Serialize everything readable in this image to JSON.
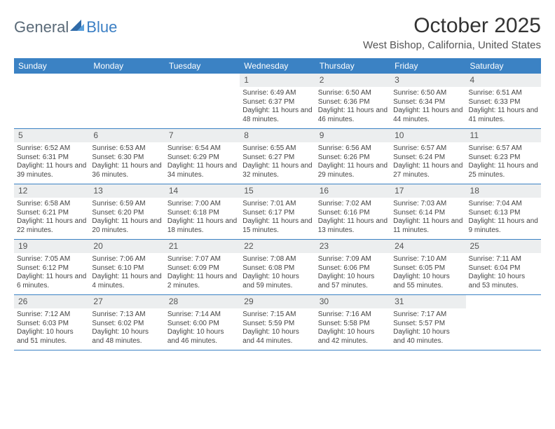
{
  "logo": {
    "text1": "General",
    "text2": "Blue"
  },
  "title": "October 2025",
  "location": "West Bishop, California, United States",
  "colors": {
    "header_bg": "#3b82c4",
    "header_text": "#ffffff",
    "daynum_bg": "#eceeef",
    "week_border": "#3b82c4",
    "body_text": "#444444",
    "logo_gray": "#5a6a78",
    "logo_blue": "#3b7fc4"
  },
  "day_names": [
    "Sunday",
    "Monday",
    "Tuesday",
    "Wednesday",
    "Thursday",
    "Friday",
    "Saturday"
  ],
  "weeks": [
    [
      {
        "n": "",
        "sunrise": "",
        "sunset": "",
        "daylight": ""
      },
      {
        "n": "",
        "sunrise": "",
        "sunset": "",
        "daylight": ""
      },
      {
        "n": "",
        "sunrise": "",
        "sunset": "",
        "daylight": ""
      },
      {
        "n": "1",
        "sunrise": "Sunrise: 6:49 AM",
        "sunset": "Sunset: 6:37 PM",
        "daylight": "Daylight: 11 hours and 48 minutes."
      },
      {
        "n": "2",
        "sunrise": "Sunrise: 6:50 AM",
        "sunset": "Sunset: 6:36 PM",
        "daylight": "Daylight: 11 hours and 46 minutes."
      },
      {
        "n": "3",
        "sunrise": "Sunrise: 6:50 AM",
        "sunset": "Sunset: 6:34 PM",
        "daylight": "Daylight: 11 hours and 44 minutes."
      },
      {
        "n": "4",
        "sunrise": "Sunrise: 6:51 AM",
        "sunset": "Sunset: 6:33 PM",
        "daylight": "Daylight: 11 hours and 41 minutes."
      }
    ],
    [
      {
        "n": "5",
        "sunrise": "Sunrise: 6:52 AM",
        "sunset": "Sunset: 6:31 PM",
        "daylight": "Daylight: 11 hours and 39 minutes."
      },
      {
        "n": "6",
        "sunrise": "Sunrise: 6:53 AM",
        "sunset": "Sunset: 6:30 PM",
        "daylight": "Daylight: 11 hours and 36 minutes."
      },
      {
        "n": "7",
        "sunrise": "Sunrise: 6:54 AM",
        "sunset": "Sunset: 6:29 PM",
        "daylight": "Daylight: 11 hours and 34 minutes."
      },
      {
        "n": "8",
        "sunrise": "Sunrise: 6:55 AM",
        "sunset": "Sunset: 6:27 PM",
        "daylight": "Daylight: 11 hours and 32 minutes."
      },
      {
        "n": "9",
        "sunrise": "Sunrise: 6:56 AM",
        "sunset": "Sunset: 6:26 PM",
        "daylight": "Daylight: 11 hours and 29 minutes."
      },
      {
        "n": "10",
        "sunrise": "Sunrise: 6:57 AM",
        "sunset": "Sunset: 6:24 PM",
        "daylight": "Daylight: 11 hours and 27 minutes."
      },
      {
        "n": "11",
        "sunrise": "Sunrise: 6:57 AM",
        "sunset": "Sunset: 6:23 PM",
        "daylight": "Daylight: 11 hours and 25 minutes."
      }
    ],
    [
      {
        "n": "12",
        "sunrise": "Sunrise: 6:58 AM",
        "sunset": "Sunset: 6:21 PM",
        "daylight": "Daylight: 11 hours and 22 minutes."
      },
      {
        "n": "13",
        "sunrise": "Sunrise: 6:59 AM",
        "sunset": "Sunset: 6:20 PM",
        "daylight": "Daylight: 11 hours and 20 minutes."
      },
      {
        "n": "14",
        "sunrise": "Sunrise: 7:00 AM",
        "sunset": "Sunset: 6:18 PM",
        "daylight": "Daylight: 11 hours and 18 minutes."
      },
      {
        "n": "15",
        "sunrise": "Sunrise: 7:01 AM",
        "sunset": "Sunset: 6:17 PM",
        "daylight": "Daylight: 11 hours and 15 minutes."
      },
      {
        "n": "16",
        "sunrise": "Sunrise: 7:02 AM",
        "sunset": "Sunset: 6:16 PM",
        "daylight": "Daylight: 11 hours and 13 minutes."
      },
      {
        "n": "17",
        "sunrise": "Sunrise: 7:03 AM",
        "sunset": "Sunset: 6:14 PM",
        "daylight": "Daylight: 11 hours and 11 minutes."
      },
      {
        "n": "18",
        "sunrise": "Sunrise: 7:04 AM",
        "sunset": "Sunset: 6:13 PM",
        "daylight": "Daylight: 11 hours and 9 minutes."
      }
    ],
    [
      {
        "n": "19",
        "sunrise": "Sunrise: 7:05 AM",
        "sunset": "Sunset: 6:12 PM",
        "daylight": "Daylight: 11 hours and 6 minutes."
      },
      {
        "n": "20",
        "sunrise": "Sunrise: 7:06 AM",
        "sunset": "Sunset: 6:10 PM",
        "daylight": "Daylight: 11 hours and 4 minutes."
      },
      {
        "n": "21",
        "sunrise": "Sunrise: 7:07 AM",
        "sunset": "Sunset: 6:09 PM",
        "daylight": "Daylight: 11 hours and 2 minutes."
      },
      {
        "n": "22",
        "sunrise": "Sunrise: 7:08 AM",
        "sunset": "Sunset: 6:08 PM",
        "daylight": "Daylight: 10 hours and 59 minutes."
      },
      {
        "n": "23",
        "sunrise": "Sunrise: 7:09 AM",
        "sunset": "Sunset: 6:06 PM",
        "daylight": "Daylight: 10 hours and 57 minutes."
      },
      {
        "n": "24",
        "sunrise": "Sunrise: 7:10 AM",
        "sunset": "Sunset: 6:05 PM",
        "daylight": "Daylight: 10 hours and 55 minutes."
      },
      {
        "n": "25",
        "sunrise": "Sunrise: 7:11 AM",
        "sunset": "Sunset: 6:04 PM",
        "daylight": "Daylight: 10 hours and 53 minutes."
      }
    ],
    [
      {
        "n": "26",
        "sunrise": "Sunrise: 7:12 AM",
        "sunset": "Sunset: 6:03 PM",
        "daylight": "Daylight: 10 hours and 51 minutes."
      },
      {
        "n": "27",
        "sunrise": "Sunrise: 7:13 AM",
        "sunset": "Sunset: 6:02 PM",
        "daylight": "Daylight: 10 hours and 48 minutes."
      },
      {
        "n": "28",
        "sunrise": "Sunrise: 7:14 AM",
        "sunset": "Sunset: 6:00 PM",
        "daylight": "Daylight: 10 hours and 46 minutes."
      },
      {
        "n": "29",
        "sunrise": "Sunrise: 7:15 AM",
        "sunset": "Sunset: 5:59 PM",
        "daylight": "Daylight: 10 hours and 44 minutes."
      },
      {
        "n": "30",
        "sunrise": "Sunrise: 7:16 AM",
        "sunset": "Sunset: 5:58 PM",
        "daylight": "Daylight: 10 hours and 42 minutes."
      },
      {
        "n": "31",
        "sunrise": "Sunrise: 7:17 AM",
        "sunset": "Sunset: 5:57 PM",
        "daylight": "Daylight: 10 hours and 40 minutes."
      },
      {
        "n": "",
        "sunrise": "",
        "sunset": "",
        "daylight": ""
      }
    ]
  ]
}
